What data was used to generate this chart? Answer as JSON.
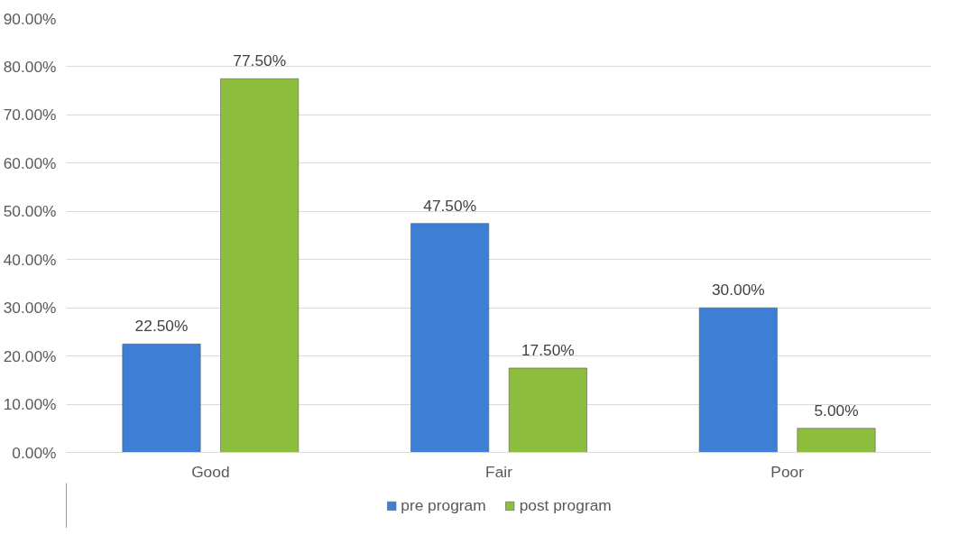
{
  "chart_data": {
    "type": "bar",
    "categories": [
      "Good",
      "Fair",
      "Poor"
    ],
    "series": [
      {
        "name": "pre program",
        "color": "#3c7fd4",
        "values": [
          22.5,
          47.5,
          30
        ],
        "value_labels": [
          "22.50%",
          "47.50%",
          "30.00%"
        ]
      },
      {
        "name": "post program",
        "color": "#8dbd3c",
        "values": [
          77.5,
          17.5,
          5
        ],
        "value_labels": [
          "77.50%",
          "17.50%",
          "5.00%"
        ]
      }
    ],
    "ylim": [
      0,
      90
    ],
    "yticks": [
      {
        "value": 0,
        "label": "0.00%"
      },
      {
        "value": 10,
        "label": "10.00%"
      },
      {
        "value": 20,
        "label": "20.00%"
      },
      {
        "value": 30,
        "label": "30.00%"
      },
      {
        "value": 40,
        "label": "40.00%"
      },
      {
        "value": 50,
        "label": "50.00%"
      },
      {
        "value": 60,
        "label": "60.00%"
      },
      {
        "value": 70,
        "label": "70.00%"
      },
      {
        "value": 80,
        "label": "80.00%"
      },
      {
        "value": 90,
        "label": "90.00%"
      }
    ],
    "grid": "y",
    "legend": "bottom"
  }
}
